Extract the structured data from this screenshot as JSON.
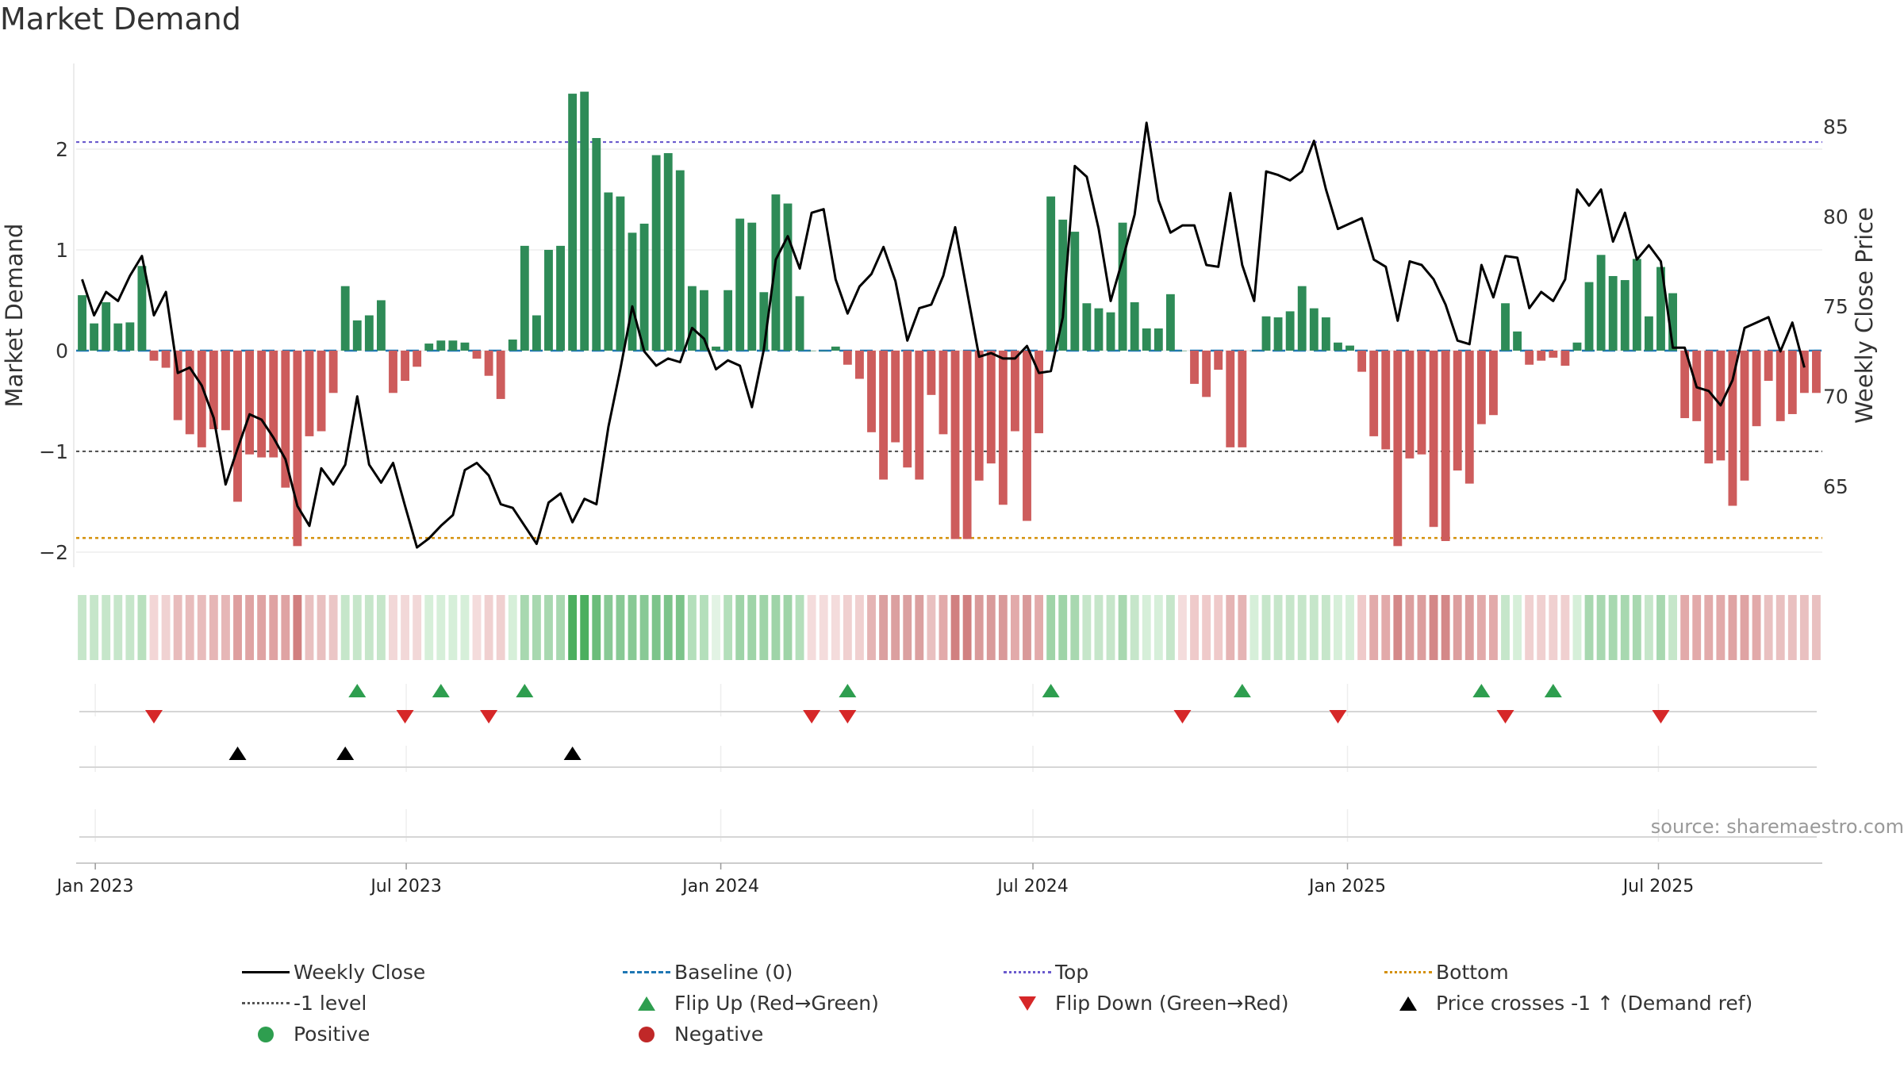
{
  "title": "Market Demand",
  "source": "source: sharemaestro.com",
  "colors": {
    "pos_bar": "#2e8b57",
    "neg_bar": "#cd5c5c",
    "close_line": "#000000",
    "top_line": "#6a5acd",
    "bottom_line": "#d4900a",
    "level_line": "#555555",
    "baseline": "#1f77b4",
    "flip_up": "#2e9e4f",
    "flip_down": "#d62728",
    "cross": "#000000"
  },
  "chart_data": {
    "type": "bar+line",
    "left_axis": {
      "label": "Market Demand",
      "ticks": [
        2,
        1,
        0,
        -1,
        -2
      ],
      "tick_labels": [
        "2",
        "1",
        "0",
        "−1",
        "−2"
      ],
      "range": [
        -2.15,
        2.85
      ]
    },
    "right_axis": {
      "label": "Weekly Close Price",
      "ticks": [
        85,
        80,
        75,
        70,
        65
      ],
      "tick_labels": [
        "85",
        "80",
        "75",
        "70",
        "65"
      ],
      "range": [
        60.5,
        88.5
      ]
    },
    "x_ticks": [
      {
        "label": "Jan 2023",
        "week": 1.6
      },
      {
        "label": "Jul 2023",
        "week": 27.6
      },
      {
        "label": "Jan 2024",
        "week": 53.9
      },
      {
        "label": "Jul 2024",
        "week": 80
      },
      {
        "label": "Jan 2025",
        "week": 106.3
      },
      {
        "label": "Jul 2025",
        "week": 132.3
      }
    ],
    "reference_lines": {
      "top": 2.07,
      "minus_one_level": -1.0,
      "bottom": -1.86,
      "baseline": 0
    },
    "demand": [
      0.55,
      0.27,
      0.48,
      0.27,
      0.28,
      0.84,
      -0.1,
      -0.17,
      -0.69,
      -0.83,
      -0.96,
      -0.78,
      -0.79,
      -1.5,
      -1.03,
      -1.06,
      -1.06,
      -1.36,
      -1.94,
      -0.85,
      -0.8,
      -0.42,
      0.64,
      0.3,
      0.35,
      0.5,
      -0.42,
      -0.3,
      -0.16,
      0.07,
      0.1,
      0.1,
      0.08,
      -0.08,
      -0.25,
      -0.48,
      0.11,
      1.04,
      0.35,
      1.0,
      1.04,
      2.55,
      2.57,
      2.11,
      1.57,
      1.53,
      1.17,
      1.26,
      1.94,
      1.96,
      1.79,
      0.64,
      0.6,
      0.04,
      0.6,
      1.31,
      1.27,
      0.58,
      1.55,
      1.46,
      0.54,
      0.0,
      0.0,
      0.04,
      -0.14,
      -0.28,
      -0.81,
      -1.28,
      -0.91,
      -1.16,
      -1.28,
      -0.44,
      -0.83,
      -1.87,
      -1.87,
      -1.29,
      -1.12,
      -1.53,
      -0.8,
      -1.69,
      -0.82,
      1.53,
      1.3,
      1.18,
      0.47,
      0.42,
      0.38,
      1.27,
      0.48,
      0.22,
      0.22,
      0.56,
      0.0,
      -0.33,
      -0.46,
      -0.19,
      -0.96,
      -0.96,
      0.0,
      0.34,
      0.33,
      0.39,
      0.64,
      0.42,
      0.33,
      0.08,
      0.05,
      -0.21,
      -0.85,
      -0.98,
      -1.94,
      -1.07,
      -1.03,
      -1.75,
      -1.89,
      -1.19,
      -1.32,
      -0.73,
      -0.64,
      0.47,
      0.19,
      -0.14,
      -0.1,
      -0.07,
      -0.15,
      0.08,
      0.68,
      0.95,
      0.74,
      0.7,
      0.91,
      0.34,
      0.83,
      0.57,
      -0.67,
      -0.7,
      -1.12,
      -1.09,
      -1.54,
      -1.29,
      -0.75,
      -0.3,
      -0.7,
      -0.63,
      -0.42,
      -0.42
    ],
    "weekly_close": [
      76.5,
      74.5,
      75.8,
      75.3,
      76.7,
      77.8,
      74.5,
      75.8,
      71.3,
      71.6,
      70.6,
      68.8,
      65.1,
      67.1,
      69.0,
      68.7,
      67.7,
      66.5,
      63.9,
      62.8,
      66.0,
      65.1,
      66.2,
      70.0,
      66.2,
      65.2,
      66.3,
      63.9,
      61.6,
      62.1,
      62.8,
      63.4,
      65.9,
      66.3,
      65.6,
      64.0,
      63.8,
      62.8,
      61.8,
      64.1,
      64.6,
      63.0,
      64.3,
      64.0,
      68.3,
      71.5,
      75.0,
      72.5,
      71.7,
      72.1,
      71.9,
      73.8,
      73.2,
      71.5,
      72.0,
      71.7,
      69.4,
      72.6,
      77.6,
      78.9,
      77.1,
      80.2,
      80.4,
      76.5,
      74.6,
      76.1,
      76.8,
      78.3,
      76.4,
      73.1,
      74.9,
      75.1,
      76.7,
      79.4,
      75.8,
      72.2,
      72.4,
      72.1,
      72.1,
      72.8,
      71.3,
      71.4,
      74.4,
      82.8,
      82.2,
      79.3,
      75.3,
      77.6,
      80.1,
      85.2,
      80.9,
      79.1,
      79.5,
      79.5,
      77.3,
      77.2,
      81.3,
      77.3,
      75.3,
      82.5,
      82.3,
      82.0,
      82.5,
      84.2,
      81.5,
      79.3,
      79.6,
      79.9,
      77.6,
      77.2,
      74.2,
      77.5,
      77.3,
      76.5,
      75.1,
      73.1,
      72.9,
      77.3,
      75.5,
      77.8,
      77.7,
      74.9,
      75.8,
      75.3,
      76.5,
      81.5,
      80.6,
      81.5,
      78.6,
      80.2,
      77.6,
      78.4,
      77.5,
      72.7,
      72.7,
      70.5,
      70.3,
      69.5,
      70.9,
      73.8,
      74.1,
      74.4,
      72.5,
      74.1,
      71.6
    ],
    "momentum_colors": [
      "#c6e6ca",
      "#c6e6ca",
      "#c6e6ca",
      "#c6e6ca",
      "#c6e6ca",
      "#b9e0be",
      "#f3d6d6",
      "#f0d2d2",
      "#e8bcbc",
      "#e8bcbc",
      "#e8bcbc",
      "#e6b6b6",
      "#e6b6b6",
      "#de9e9e",
      "#dfa3a3",
      "#dfa3a3",
      "#dfa3a3",
      "#dfa3a3",
      "#d17f7f",
      "#e9c0c0",
      "#e9c0c0",
      "#ebc6c6",
      "#c6e6ca",
      "#c6e6ca",
      "#c6e6ca",
      "#c6e6ca",
      "#f2d8d8",
      "#f2d8d8",
      "#f2d8d8",
      "#d6efd9",
      "#d6efd9",
      "#d6efd9",
      "#d6efd9",
      "#f4dcdc",
      "#f0d0d0",
      "#f0d0d0",
      "#d6efd9",
      "#a8d8b0",
      "#a8d8b0",
      "#a8d8b0",
      "#a8d8b0",
      "#4caf5f",
      "#4caf5f",
      "#6bbd7a",
      "#88c995",
      "#88c995",
      "#88c995",
      "#88c995",
      "#7cc48a",
      "#7cc48a",
      "#7cc48a",
      "#b4dfbb",
      "#b4dfbb",
      "#e2f3e4",
      "#b4dfbb",
      "#9fd4a8",
      "#9fd4a8",
      "#9fd4a8",
      "#9fd4a8",
      "#9fd4a8",
      "#b4dfbb",
      "#f4dcdc",
      "#f4dcdc",
      "#f4dcdc",
      "#f0d0d0",
      "#f0d0d0",
      "#e5b4b4",
      "#dba0a0",
      "#dba0a0",
      "#dba0a0",
      "#dba0a0",
      "#e9c0c0",
      "#e2aaaa",
      "#d18080",
      "#d18080",
      "#d99a9a",
      "#d99a9a",
      "#d99a9a",
      "#e2aaaa",
      "#d99a9a",
      "#e2aaaa",
      "#9fd4a8",
      "#9fd4a8",
      "#a8d8b0",
      "#c6e6ca",
      "#c6e6ca",
      "#c6e6ca",
      "#a8d8b0",
      "#c6e6ca",
      "#d6efd9",
      "#d6efd9",
      "#c6e6ca",
      "#f4dcdc",
      "#efcaca",
      "#efcaca",
      "#efcaca",
      "#e5b4b4",
      "#e5b4b4",
      "#d6efd9",
      "#c6e6ca",
      "#c6e6ca",
      "#c6e6ca",
      "#c6e6ca",
      "#c6e6ca",
      "#c6e6ca",
      "#d6efd9",
      "#d6efd9",
      "#efcaca",
      "#e2aaaa",
      "#e2aaaa",
      "#d48888",
      "#dc9e9e",
      "#dc9e9e",
      "#d48888",
      "#d48888",
      "#dc9e9e",
      "#dc9e9e",
      "#e2aaaa",
      "#e2aaaa",
      "#c6e6ca",
      "#d6efd9",
      "#f0d0d0",
      "#f0d0d0",
      "#f0d0d0",
      "#f0d0d0",
      "#d6efd9",
      "#a8d8b0",
      "#a8d8b0",
      "#a8d8b0",
      "#a8d8b0",
      "#a8d8b0",
      "#c6e6ca",
      "#a8d8b0",
      "#c6e6ca",
      "#e2aaaa",
      "#e2aaaa",
      "#e2aaaa",
      "#e2aaaa",
      "#dfa3a3",
      "#dfa3a3",
      "#e2aaaa",
      "#e9c0c0",
      "#e9c0c0",
      "#e9c0c0",
      "#e9c0c0",
      "#e9c0c0"
    ],
    "flip_up_weeks": [
      23,
      30,
      37,
      64,
      81,
      97,
      117,
      123
    ],
    "flip_down_weeks": [
      6,
      27,
      34,
      61,
      64,
      92,
      105,
      119,
      132
    ],
    "price_cross_weeks": [
      13,
      22,
      41
    ]
  },
  "legend": [
    {
      "symbol": "line-solid",
      "label": "Weekly Close"
    },
    {
      "symbol": "line-dash-blue",
      "label": "Baseline (0)"
    },
    {
      "symbol": "line-dot-purple",
      "label": "Top"
    },
    {
      "symbol": "line-dot-orange",
      "label": "Bottom"
    },
    {
      "symbol": "line-dot-grey",
      "label": "-1 level"
    },
    {
      "symbol": "triangle-up-green",
      "label": "Flip Up (Red→Green)"
    },
    {
      "symbol": "triangle-down-red",
      "label": "Flip Down (Green→Red)"
    },
    {
      "symbol": "triangle-up-black",
      "label": "Price crosses -1 ↑ (Demand ref)"
    },
    {
      "symbol": "dot-green",
      "label": "Positive"
    },
    {
      "symbol": "dot-red",
      "label": "Negative"
    }
  ]
}
